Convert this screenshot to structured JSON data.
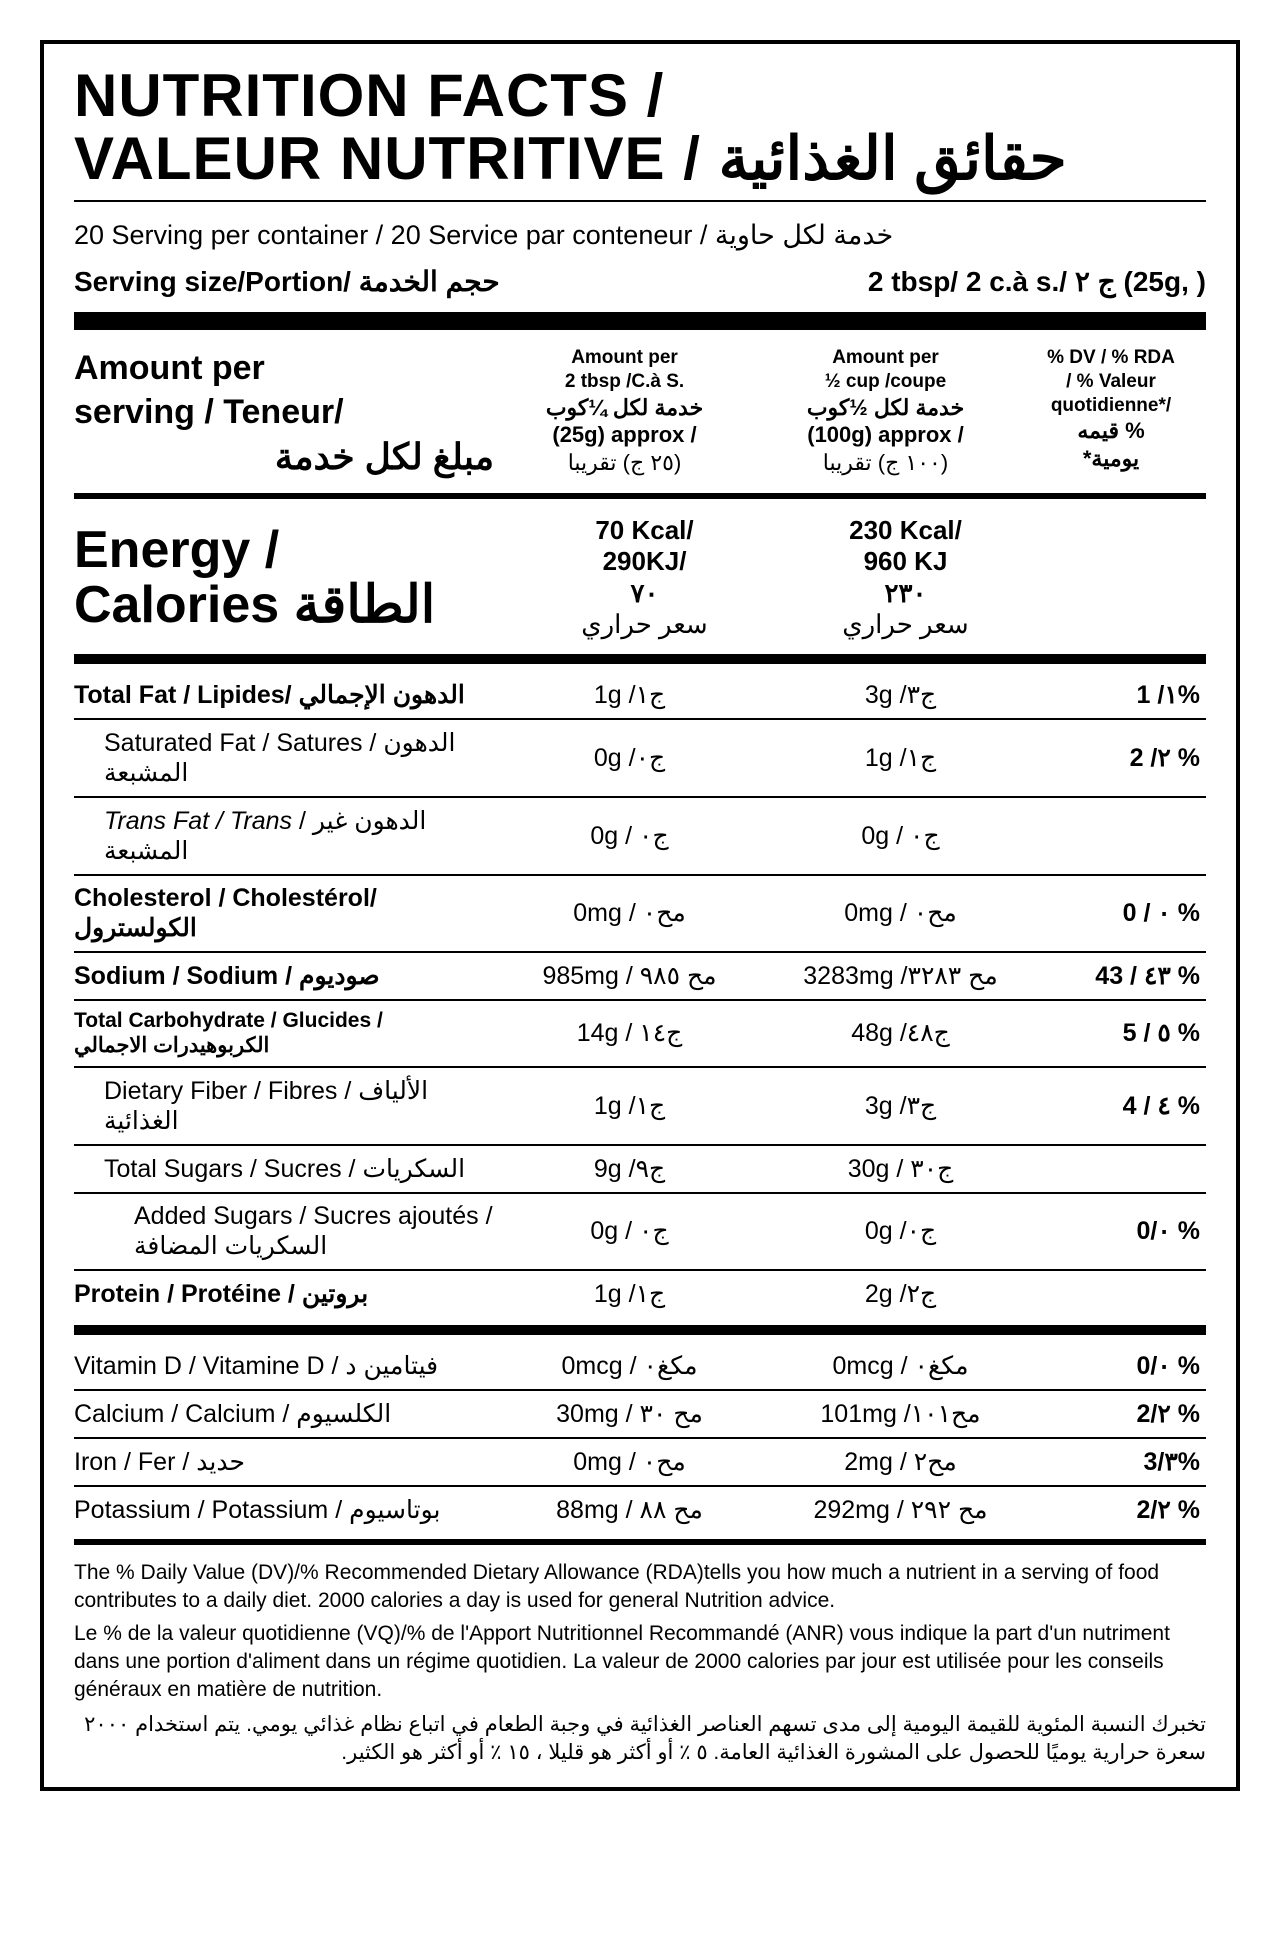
{
  "title": {
    "line1": "NUTRITION FACTS /",
    "line2_en": "VALEUR NUTRITIVE / ",
    "line2_ar": "حقائق الغذائية"
  },
  "servings_line": "20 Serving per container / 20 Service par conteneur /  خدمة لكل حاوية",
  "serving_size": {
    "label": "Serving size/Portion/ حجم الخدمة",
    "value": "2 tbsp/ 2 c.à s./ ج ٢  (25g,    )"
  },
  "amount_header": {
    "left_line1": "Amount per",
    "left_line2": "serving / Teneur/",
    "left_ar": "مبلغ لكل خدمة",
    "col1_l1": "Amount per",
    "col1_l2": "2 tbsp /C.à S.",
    "col1_ar": "خدمة لكل ¼كوب",
    "col1_l3": "(25g) approx /",
    "col1_ar2": "(٢٥ ج) تقريبا",
    "col2_l1": "Amount per",
    "col2_l2": "½ cup /coupe",
    "col2_ar": "خدمة لكل ½كوب",
    "col2_l3": "(100g) approx /",
    "col2_ar2": "(١٠٠ ج) تقريبا",
    "col3_l1": "% DV / % RDA",
    "col3_l2": "/ % Valeur",
    "col3_l3": "quotidienne*/",
    "col3_ar1": "% قيمه",
    "col3_ar2": "يومية*"
  },
  "energy": {
    "label_l1": "Energy /",
    "label_l2": "Calories  الطاقة",
    "c1_l1": "70 Kcal/",
    "c1_l2": "290KJ/",
    "c1_l3": "٧٠",
    "c1_l4": "سعر حراري",
    "c2_l1": "230 Kcal/",
    "c2_l2": "960 KJ",
    "c2_l3": "٢٣٠",
    "c2_l4": "سعر حراري"
  },
  "rows": [
    {
      "label": "Total Fat / Lipides/ الدهون الإجمالي",
      "indent": 0,
      "c1": "1g /ج١",
      "c2": "3g /ج٣",
      "dv": "1 /١%"
    },
    {
      "label": "Saturated Fat / Satures / الدهون المشبعة",
      "indent": 1,
      "c1": "0g /ج٠",
      "c2": "1g /ج١",
      "dv": "2 /٢ %"
    },
    {
      "label": "<i>Trans Fat / Trans</i> / الدهون غير المشبعة",
      "indent": 1,
      "c1": "0g / ج٠",
      "c2": "0g / ج٠",
      "dv": ""
    },
    {
      "label": "Cholesterol / Cholestérol/ الكولسترول",
      "indent": 0,
      "c1": "0mg / مح٠",
      "c2": "0mg / مح٠",
      "dv": "0 / ٠ %"
    },
    {
      "label": "Sodium / Sodium / صوديوم",
      "indent": 0,
      "c1": "985mg / مح ٩٨٥",
      "c2": "3283mg /مح ٣٢٨٣",
      "dv": "43 / ٤٣ %"
    },
    {
      "label": "Total Carbohydrate / Glucides / الكربوهيدرات الاجمالي",
      "indent": 0,
      "small": true,
      "c1": "14g / ج١٤",
      "c2": "48g /ج٤٨",
      "dv": "5 / ٥ %"
    },
    {
      "label": "Dietary Fiber / Fibres / الألياف الغذائية",
      "indent": 1,
      "c1": "1g /ج١",
      "c2": "3g /ج٣",
      "dv": "4 / ٤ %"
    },
    {
      "label": "Total Sugars / Sucres / السكريات",
      "indent": 1,
      "c1": "9g /ج٩",
      "c2": "30g / ج٣٠",
      "dv": ""
    },
    {
      "label": "Added Sugars / Sucres ajoutés / السكريات المضافة",
      "indent": 2,
      "c1": "0g / ج٠",
      "c2": "0g /ج٠",
      "dv": "0/٠ %"
    },
    {
      "label": "Protein / Protéine / بروتين",
      "indent": 0,
      "c1": "1g /ج١",
      "c2": "2g /ج٢",
      "dv": ""
    }
  ],
  "micronutrients": [
    {
      "label": "Vitamin D / Vitamine D / فيتامين د",
      "c1": "0mcg / مكغ٠",
      "c2": "0mcg / مكغ٠",
      "dv": "0/٠ %"
    },
    {
      "label": "Calcium / Calcium / الكلسيوم",
      "c1": "30mg / مح ٣٠",
      "c2": "101mg /مح١٠١",
      "dv": "2/٢ %"
    },
    {
      "label": "Iron / Fer / حديد",
      "c1": "0mg / مح٠",
      "c2": "2mg / مح٢",
      "dv": "3/٣%"
    },
    {
      "label": "Potassium / Potassium / بوتاسيوم",
      "c1": "88mg / مح ٨٨",
      "c2": "292mg / مح ٢٩٢",
      "dv": "2/٢ %"
    }
  ],
  "footnotes": {
    "en": "The % Daily Value (DV)/% Recommended Dietary Allowance (RDA)tells you how much a nutrient in a serving of food contributes to a daily diet. 2000 calories a day is used for general Nutrition advice.",
    "fr": "Le % de la valeur quotidienne (VQ)/% de l'Apport Nutritionnel Recommandé (ANR) vous indique la part d'un nutriment dans une portion d'aliment dans un régime quotidien. La valeur de 2000 calories par jour est utilisée pour les conseils généraux en matière de nutrition.",
    "ar": "تخبرك النسبة المئوية للقيمة اليومية إلى مدى تسهم العناصر الغذائية في وجبة الطعام في اتباع نظام غذائي يومي. يتم استخدام ٢٠٠٠ سعرة حرارية يوميًا للحصول على المشورة الغذائية العامة. ٥ ٪ أو أكثر هو قليلا ، ١٥ ٪ أو أكثر هو الكثير."
  }
}
